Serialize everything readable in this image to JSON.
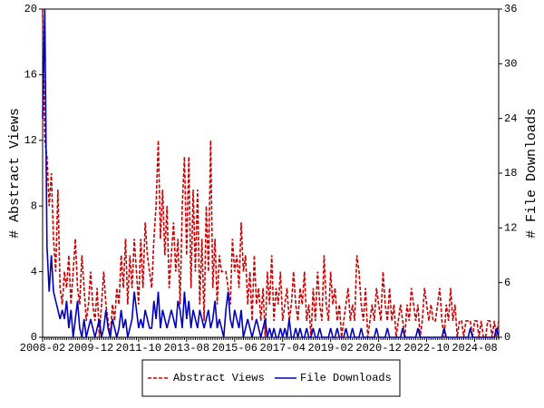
{
  "chart_data": {
    "type": "line",
    "y_label": "# Abstract Views",
    "y2_label": "# File Downloads",
    "categories": [
      "2008-02",
      null,
      null,
      null,
      null,
      null,
      null,
      null,
      null,
      null,
      null,
      null,
      null,
      null,
      null,
      null,
      null,
      null,
      null,
      null,
      null,
      null,
      "2009-12",
      null,
      null,
      null,
      null,
      null,
      null,
      null,
      null,
      null,
      null,
      null,
      null,
      null,
      null,
      null,
      null,
      null,
      null,
      null,
      null,
      null,
      "2011-10",
      null,
      null,
      null,
      null,
      null,
      null,
      null,
      null,
      null,
      null,
      null,
      null,
      null,
      null,
      null,
      null,
      null,
      null,
      null,
      null,
      null,
      "2013-08",
      null,
      null,
      null,
      null,
      null,
      null,
      null,
      null,
      null,
      null,
      null,
      null,
      null,
      null,
      null,
      null,
      null,
      null,
      null,
      null,
      null,
      "2015-06",
      null,
      null,
      null,
      null,
      null,
      null,
      null,
      null,
      null,
      null,
      null,
      null,
      null,
      null,
      null,
      null,
      null,
      null,
      null,
      null,
      null,
      "2017-04",
      null,
      null,
      null,
      null,
      null,
      null,
      null,
      null,
      null,
      null,
      null,
      null,
      null,
      null,
      null,
      null,
      null,
      null,
      null,
      null,
      null,
      "2019-02",
      null,
      null,
      null,
      null,
      null,
      null,
      null,
      null,
      null,
      null,
      null,
      null,
      null,
      null,
      null,
      null,
      null,
      null,
      null,
      null,
      null,
      "2020-12",
      null,
      null,
      null,
      null,
      null,
      null,
      null,
      null,
      null,
      null,
      null,
      null,
      null,
      null,
      null,
      null,
      null,
      null,
      null,
      null,
      null,
      "2022-10",
      null,
      null,
      null,
      null,
      null,
      null,
      null,
      null,
      null,
      null,
      null,
      null,
      null,
      null,
      null,
      null,
      null,
      null,
      null,
      null,
      null,
      "2024-08",
      null,
      null,
      null,
      null,
      null,
      null,
      null,
      null,
      null,
      null,
      null
    ],
    "series": [
      {
        "name": "Abstract Views",
        "color": "#cc0000",
        "dash": true,
        "axis": "y",
        "values": [
          20,
          12,
          11,
          8,
          10,
          6,
          4,
          9,
          3,
          2,
          4,
          3,
          5,
          2,
          4,
          6,
          3,
          2,
          5,
          3,
          1,
          2,
          4,
          2,
          1,
          3,
          0,
          2,
          4,
          2,
          1,
          0,
          2,
          1,
          3,
          2,
          5,
          3,
          6,
          2,
          5,
          3,
          6,
          4,
          2,
          6,
          3,
          7,
          5,
          4,
          3,
          6,
          8,
          12,
          6,
          9,
          5,
          8,
          3,
          5,
          7,
          4,
          6,
          2,
          8,
          11,
          5,
          11,
          3,
          9,
          4,
          9,
          2,
          6,
          1,
          8,
          4,
          12,
          3,
          6,
          2,
          5,
          4,
          4,
          4,
          3,
          2,
          6,
          4,
          5,
          3,
          7,
          4,
          5,
          2,
          4,
          1,
          5,
          2,
          3,
          1,
          3,
          0,
          4,
          2,
          5,
          1,
          3,
          2,
          4,
          1,
          2,
          3,
          1,
          2,
          4,
          2,
          1,
          3,
          2,
          4,
          1,
          2,
          0,
          3,
          1,
          4,
          2,
          1,
          5,
          2,
          1,
          4,
          2,
          3,
          1,
          2,
          0,
          1,
          2,
          3,
          1,
          2,
          1,
          5,
          4,
          2,
          1,
          3,
          0,
          1,
          2,
          1,
          3,
          2,
          1,
          4,
          2,
          1,
          3,
          1,
          2,
          0,
          1,
          2,
          1,
          0,
          2,
          1,
          3,
          2,
          1,
          2,
          0,
          1,
          3,
          2,
          1,
          2,
          1,
          1,
          2,
          3,
          1,
          0,
          2,
          1,
          3,
          1,
          2,
          0,
          1,
          1,
          0,
          1,
          1,
          1,
          0,
          1,
          1,
          0,
          1,
          0,
          0,
          1,
          1,
          0,
          1,
          0,
          1
        ]
      },
      {
        "name": "File Downloads",
        "color": "#0000bb",
        "dash": false,
        "axis": "y2",
        "values": [
          24,
          36,
          10,
          5,
          9,
          5,
          4,
          3,
          2,
          3,
          2,
          4,
          1,
          3,
          0,
          2,
          4,
          1,
          0,
          2,
          0,
          1,
          2,
          1,
          0,
          1,
          2,
          0,
          1,
          3,
          1,
          0,
          2,
          1,
          0,
          1,
          3,
          1,
          2,
          0,
          1,
          2,
          5,
          3,
          1,
          2,
          1,
          3,
          2,
          1,
          1,
          4,
          2,
          5,
          1,
          3,
          2,
          1,
          2,
          3,
          2,
          1,
          4,
          3,
          1,
          5,
          2,
          4,
          1,
          3,
          2,
          1,
          3,
          2,
          1,
          2,
          3,
          1,
          2,
          4,
          1,
          2,
          1,
          0,
          3,
          5,
          2,
          1,
          3,
          2,
          1,
          3,
          0,
          1,
          2,
          1,
          0,
          1,
          2,
          1,
          0,
          1,
          2,
          0,
          1,
          0,
          1,
          0,
          0,
          1,
          0,
          1,
          0,
          2,
          0,
          0,
          1,
          0,
          1,
          0,
          0,
          1,
          0,
          0,
          1,
          0,
          0,
          1,
          0,
          0,
          0,
          0,
          1,
          0,
          0,
          1,
          0,
          0,
          0,
          1,
          0,
          0,
          1,
          0,
          0,
          0,
          1,
          0,
          0,
          0,
          0,
          0,
          0,
          1,
          0,
          0,
          0,
          0,
          1,
          0,
          0,
          0,
          0,
          0,
          0,
          1,
          0,
          0,
          0,
          0,
          0,
          0,
          1,
          0,
          0,
          0,
          0,
          0,
          0,
          0,
          0,
          0,
          0,
          0,
          1,
          0,
          0,
          0,
          0,
          0,
          0,
          0,
          0,
          0,
          0,
          0,
          1,
          0,
          0,
          0,
          0,
          0,
          0,
          0,
          0,
          0,
          0,
          0,
          1,
          0
        ]
      }
    ],
    "ylim": [
      0,
      20
    ],
    "yticks": [
      0,
      4,
      8,
      12,
      16,
      20
    ],
    "y2lim": [
      0,
      36
    ],
    "y2ticks": [
      0,
      6,
      12,
      18,
      24,
      30,
      36
    ],
    "legend": "bottom"
  }
}
